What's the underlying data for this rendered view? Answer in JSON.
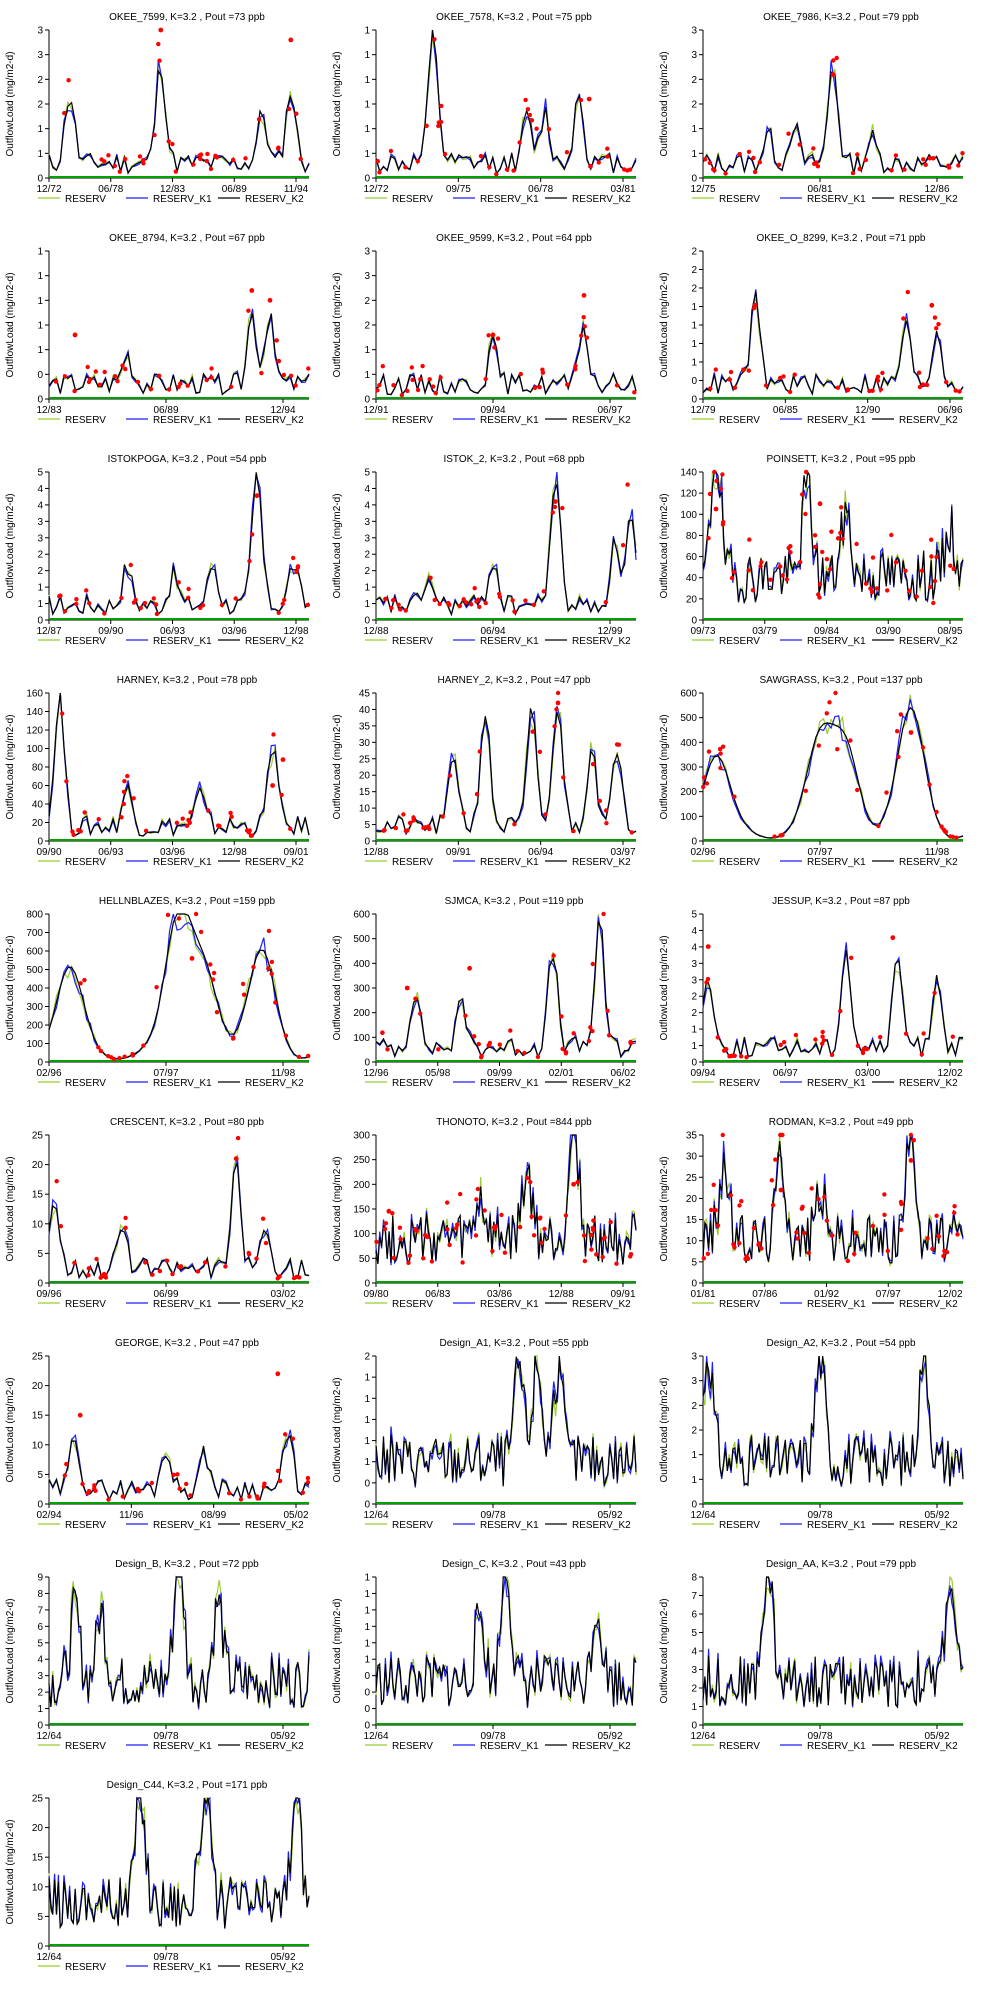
{
  "colors": {
    "RESERV": "#9acd32",
    "RESERV_K1": "#1f1fff",
    "RESERV_K2": "#000000",
    "obs": "#ff0000",
    "baseline": "#00a000"
  },
  "legend": [
    "RESERV",
    "RESERV_K1",
    "RESERV_K2"
  ],
  "ylabel": "OutflowLoad (mg/m2-d)",
  "chart_data": [
    {
      "type": "line",
      "title": "OKEE_7599, K=3.2 , Pout =73 ppb",
      "xticks": [
        "12/72",
        "06/78",
        "12/83",
        "06/89",
        "11/94"
      ],
      "yticks": [
        "0",
        "1",
        "1",
        "2",
        "2",
        "3",
        "3"
      ],
      "ylim": [
        0,
        3
      ],
      "peaks": [
        [
          0.08,
          1.4
        ],
        [
          0.43,
          2.0
        ],
        [
          0.82,
          1.0
        ],
        [
          0.93,
          1.5
        ]
      ],
      "obs_peaks": [
        [
          0.43,
          3.05
        ],
        [
          0.93,
          2.8
        ]
      ],
      "seed": 11
    },
    {
      "type": "line",
      "title": "OKEE_7578, K=3.2 , Pout =75 ppb",
      "xticks": [
        "12/72",
        "09/75",
        "06/78",
        "03/81"
      ],
      "yticks": [
        "0",
        "1",
        "1",
        "1",
        "1",
        "1",
        "1"
      ],
      "ylim": [
        0,
        3
      ],
      "peaks": [
        [
          0.22,
          2.7
        ],
        [
          0.58,
          0.9
        ],
        [
          0.65,
          1.0
        ],
        [
          0.78,
          1.4
        ]
      ],
      "obs_peaks": [
        [
          0.82,
          1.6
        ]
      ],
      "seed": 12
    },
    {
      "type": "line",
      "title": "OKEE_7986, K=3.2 , Pout =79 ppb",
      "xticks": [
        "12/75",
        "06/81",
        "12/86"
      ],
      "yticks": [
        "0",
        "1",
        "1",
        "2",
        "2",
        "3",
        "3"
      ],
      "ylim": [
        0,
        3
      ],
      "peaks": [
        [
          0.25,
          0.6
        ],
        [
          0.35,
          0.8
        ],
        [
          0.5,
          2.0
        ],
        [
          0.65,
          0.5
        ]
      ],
      "obs_peaks": [
        [
          0.5,
          2.1
        ]
      ],
      "seed": 13
    },
    {
      "type": "line",
      "title": "OKEE_8794, K=3.2 , Pout =67 ppb",
      "xticks": [
        "12/83",
        "06/89",
        "12/94"
      ],
      "yticks": [
        "0",
        "0",
        "1",
        "1",
        "1",
        "1",
        "1"
      ],
      "ylim": [
        0,
        3
      ],
      "peaks": [
        [
          0.3,
          0.6
        ],
        [
          0.78,
          1.4
        ],
        [
          0.85,
          1.5
        ]
      ],
      "obs_peaks": [
        [
          0.78,
          2.2
        ],
        [
          0.85,
          2.0
        ],
        [
          0.1,
          1.3
        ]
      ],
      "seed": 14
    },
    {
      "type": "line",
      "title": "OKEE_9599, K=3.2 , Pout =64 ppb",
      "xticks": [
        "12/91",
        "09/94",
        "06/97"
      ],
      "yticks": [
        "0",
        "1",
        "1",
        "2",
        "2",
        "3",
        "3"
      ],
      "ylim": [
        0,
        3
      ],
      "peaks": [
        [
          0.45,
          0.8
        ],
        [
          0.8,
          1.0
        ]
      ],
      "obs_peaks": [
        [
          0.8,
          2.1
        ],
        [
          0.45,
          1.3
        ]
      ],
      "seed": 15
    },
    {
      "type": "line",
      "title": "OKEE_O_8299, K=3.2 , Pout =71 ppb",
      "xticks": [
        "12/79",
        "06/85",
        "12/90",
        "06/96"
      ],
      "yticks": [
        "0",
        "0",
        "1",
        "1",
        "1",
        "1",
        "2",
        "2",
        "2"
      ],
      "ylim": [
        0,
        3
      ],
      "peaks": [
        [
          0.2,
          1.7
        ],
        [
          0.78,
          1.2
        ],
        [
          0.9,
          1.1
        ]
      ],
      "obs_peaks": [
        [
          0.2,
          1.9
        ],
        [
          0.88,
          1.9
        ]
      ],
      "seed": 16
    },
    {
      "type": "line",
      "title": "ISTOKPOGA, K=3.2 , Pout =54 ppb",
      "xticks": [
        "12/87",
        "09/90",
        "06/93",
        "03/96",
        "12/98"
      ],
      "yticks": [
        "0",
        "1",
        "1",
        "2",
        "2",
        "3",
        "3",
        "4",
        "4",
        "5"
      ],
      "ylim": [
        0,
        5
      ],
      "peaks": [
        [
          0.3,
          1.3
        ],
        [
          0.48,
          1.0
        ],
        [
          0.63,
          1.4
        ],
        [
          0.8,
          4.4
        ],
        [
          0.94,
          1.4
        ]
      ],
      "obs_peaks": [
        [
          0.8,
          4.2
        ]
      ],
      "seed": 17
    },
    {
      "type": "line",
      "title": "ISTOK_2, K=3.2 , Pout =68 ppb",
      "xticks": [
        "12/88",
        "06/94",
        "12/99"
      ],
      "yticks": [
        "0",
        "1",
        "1",
        "2",
        "2",
        "3",
        "3",
        "4",
        "4",
        "5"
      ],
      "ylim": [
        0,
        5
      ],
      "peaks": [
        [
          0.2,
          0.9
        ],
        [
          0.45,
          1.5
        ],
        [
          0.69,
          4.4
        ],
        [
          0.92,
          2.1
        ],
        [
          0.98,
          3.0
        ]
      ],
      "obs_peaks": [
        [
          0.69,
          4.0
        ]
      ],
      "seed": 18
    },
    {
      "type": "line",
      "title": "POINSETT, K=3.2 , Pout =95 ppb",
      "xticks": [
        "09/73",
        "03/79",
        "09/84",
        "03/90",
        "08/95"
      ],
      "yticks": [
        "0",
        "20",
        "40",
        "60",
        "80",
        "100",
        "120",
        "140"
      ],
      "ylim": [
        0,
        140
      ],
      "peaks": [
        [
          0.05,
          120
        ],
        [
          0.4,
          90
        ],
        [
          0.55,
          60
        ],
        [
          0.95,
          45
        ]
      ],
      "obs_peaks": [
        [
          0.05,
          105
        ],
        [
          0.45,
          110
        ]
      ],
      "seed": 19,
      "dense": true
    },
    {
      "type": "line",
      "title": "HARNEY, K=3.2 , Pout =78 ppb",
      "xticks": [
        "09/90",
        "06/93",
        "03/96",
        "12/98",
        "09/01"
      ],
      "yticks": [
        "0",
        "20",
        "40",
        "60",
        "80",
        "100",
        "120",
        "140",
        "160"
      ],
      "ylim": [
        0,
        160
      ],
      "peaks": [
        [
          0.04,
          145
        ],
        [
          0.3,
          40
        ],
        [
          0.58,
          35
        ],
        [
          0.86,
          90
        ]
      ],
      "obs_peaks": [
        [
          0.86,
          60
        ],
        [
          0.9,
          88
        ]
      ],
      "seed": 20
    },
    {
      "type": "line",
      "title": "HARNEY_2, K=3.2 , Pout =47 ppb",
      "xticks": [
        "12/88",
        "09/91",
        "06/94",
        "03/97"
      ],
      "yticks": [
        "0",
        "5",
        "10",
        "15",
        "20",
        "25",
        "30",
        "35",
        "40",
        "45"
      ],
      "ylim": [
        0,
        45
      ],
      "peaks": [
        [
          0.3,
          22
        ],
        [
          0.42,
          35
        ],
        [
          0.6,
          35
        ],
        [
          0.7,
          38
        ],
        [
          0.83,
          25
        ],
        [
          0.93,
          25
        ]
      ],
      "obs_peaks": [
        [
          0.7,
          42
        ]
      ],
      "seed": 21
    },
    {
      "type": "line",
      "title": "SAWGRASS, K=3.2 , Pout =137 ppb",
      "xticks": [
        "02/96",
        "07/97",
        "11/98"
      ],
      "yticks": [
        "0",
        "100",
        "200",
        "300",
        "400",
        "500",
        "600"
      ],
      "ylim": [
        0,
        600
      ],
      "peaks": [
        [
          0.05,
          280
        ],
        [
          0.45,
          340
        ],
        [
          0.55,
          350
        ],
        [
          0.8,
          470
        ]
      ],
      "obs_peaks": [
        [
          0.8,
          440
        ]
      ],
      "seed": 22,
      "smooth": true
    },
    {
      "type": "line",
      "title": "HELLNBLAZES, K=3.2 , Pout =159 ppb",
      "xticks": [
        "02/96",
        "07/97",
        "11/98"
      ],
      "yticks": [
        "0",
        "100",
        "200",
        "300",
        "400",
        "500",
        "600",
        "700",
        "800"
      ],
      "ylim": [
        0,
        800
      ],
      "peaks": [
        [
          0.08,
          420
        ],
        [
          0.5,
          710
        ],
        [
          0.6,
          450
        ],
        [
          0.82,
          520
        ]
      ],
      "obs_peaks": [
        [
          0.55,
          560
        ]
      ],
      "seed": 23,
      "smooth": true
    },
    {
      "type": "line",
      "title": "SJMCA, K=3.2 , Pout =119 ppb",
      "xticks": [
        "12/96",
        "05/98",
        "09/99",
        "02/01",
        "06/02"
      ],
      "yticks": [
        "0",
        "100",
        "200",
        "300",
        "400",
        "500",
        "600"
      ],
      "ylim": [
        0,
        600
      ],
      "peaks": [
        [
          0.15,
          230
        ],
        [
          0.33,
          180
        ],
        [
          0.68,
          380
        ],
        [
          0.86,
          500
        ]
      ],
      "obs_peaks": [
        [
          0.12,
          300
        ],
        [
          0.36,
          380
        ]
      ],
      "seed": 24
    },
    {
      "type": "line",
      "title": "JESSUP, K=3.2 , Pout =87 ppb",
      "xticks": [
        "09/94",
        "06/97",
        "03/00",
        "12/02"
      ],
      "yticks": [
        "0",
        "1",
        "1",
        "2",
        "2",
        "3",
        "3",
        "4",
        "4",
        "5"
      ],
      "ylim": [
        0,
        5
      ],
      "peaks": [
        [
          0.02,
          2.5
        ],
        [
          0.55,
          3.3
        ],
        [
          0.75,
          3.0
        ],
        [
          0.9,
          2.5
        ]
      ],
      "obs_peaks": [
        [
          0.73,
          4.2
        ],
        [
          0.02,
          3.9
        ]
      ],
      "seed": 25
    },
    {
      "type": "line",
      "title": "CRESCENT, K=3.2 , Pout =80 ppb",
      "xticks": [
        "09/96",
        "06/99",
        "03/02"
      ],
      "yticks": [
        "0",
        "5",
        "10",
        "15",
        "20",
        "25"
      ],
      "ylim": [
        0,
        25
      ],
      "peaks": [
        [
          0.02,
          12
        ],
        [
          0.28,
          7
        ],
        [
          0.72,
          17
        ],
        [
          0.83,
          6
        ]
      ],
      "obs_peaks": [
        [
          0.72,
          21
        ]
      ],
      "seed": 26
    },
    {
      "type": "line",
      "title": "THONOTO, K=3.2 , Pout =844 ppb",
      "xticks": [
        "09/80",
        "06/83",
        "03/86",
        "12/88",
        "09/91"
      ],
      "yticks": [
        "0",
        "50",
        "100",
        "150",
        "200",
        "250",
        "300"
      ],
      "ylim": [
        0,
        300
      ],
      "peaks": [
        [
          0.4,
          80
        ],
        [
          0.58,
          130
        ],
        [
          0.76,
          245
        ]
      ],
      "obs_peaks": [
        [
          0.76,
          200
        ]
      ],
      "seed": 27,
      "dense": true
    },
    {
      "type": "line",
      "title": "RODMAN, K=3.2 , Pout =49 ppb",
      "xticks": [
        "01/81",
        "07/86",
        "01/92",
        "07/97",
        "12/02"
      ],
      "yticks": [
        "0",
        "5",
        "10",
        "15",
        "20",
        "25",
        "30",
        "35"
      ],
      "ylim": [
        0,
        35
      ],
      "peaks": [
        [
          0.08,
          18
        ],
        [
          0.3,
          20
        ],
        [
          0.45,
          12
        ],
        [
          0.8,
          27
        ]
      ],
      "obs_peaks": [
        [
          0.8,
          29
        ],
        [
          0.3,
          22
        ]
      ],
      "seed": 28,
      "dense": true
    },
    {
      "type": "line",
      "title": "GEORGE, K=3.2 , Pout =47 ppb",
      "xticks": [
        "02/94",
        "11/96",
        "08/99",
        "05/02"
      ],
      "yticks": [
        "0",
        "5",
        "10",
        "15",
        "20",
        "25"
      ],
      "ylim": [
        0,
        25
      ],
      "peaks": [
        [
          0.1,
          9
        ],
        [
          0.45,
          7
        ],
        [
          0.6,
          6
        ],
        [
          0.92,
          9
        ]
      ],
      "obs_peaks": [
        [
          0.88,
          22
        ],
        [
          0.12,
          15
        ]
      ],
      "seed": 29
    },
    {
      "type": "line",
      "title": "Design_A1, K=3.2 , Pout =55 ppb",
      "xticks": [
        "12/64",
        "09/78",
        "05/92"
      ],
      "yticks": [
        "0",
        "0",
        "1",
        "1",
        "1",
        "1",
        "1",
        "2"
      ],
      "ylim": [
        0,
        2
      ],
      "peaks": [
        [
          0.55,
          1.3
        ],
        [
          0.62,
          1.3
        ],
        [
          0.7,
          1.2
        ]
      ],
      "obs_peaks": [],
      "seed": 30,
      "dense": true,
      "noobs": true
    },
    {
      "type": "line",
      "title": "Design_A2, K=3.2 , Pout =54 ppb",
      "xticks": [
        "12/64",
        "09/78",
        "05/92"
      ],
      "yticks": [
        "0",
        "1",
        "1",
        "2",
        "2",
        "3",
        "3"
      ],
      "ylim": [
        0,
        3
      ],
      "peaks": [
        [
          0.02,
          2.2
        ],
        [
          0.45,
          2.1
        ],
        [
          0.85,
          2.3
        ]
      ],
      "obs_peaks": [],
      "seed": 31,
      "dense": true,
      "noobs": true
    },
    {
      "type": "line",
      "title": "Design_B, K=3.2 , Pout =72 ppb",
      "xticks": [
        "12/64",
        "09/78",
        "05/92"
      ],
      "yticks": [
        "0",
        "1",
        "2",
        "3",
        "4",
        "5",
        "6",
        "7",
        "8",
        "9"
      ],
      "ylim": [
        0,
        9
      ],
      "peaks": [
        [
          0.1,
          4.4
        ],
        [
          0.2,
          4.2
        ],
        [
          0.5,
          8.0
        ],
        [
          0.65,
          4.8
        ]
      ],
      "obs_peaks": [],
      "seed": 32,
      "dense": true,
      "noobs": true
    },
    {
      "type": "line",
      "title": "Design_C, K=3.2 , Pout =43 ppb",
      "xticks": [
        "12/64",
        "09/78",
        "05/92"
      ],
      "yticks": [
        "0",
        "0",
        "0",
        "0",
        "1",
        "1",
        "1",
        "1",
        "1",
        "1"
      ],
      "ylim": [
        0,
        2
      ],
      "peaks": [
        [
          0.5,
          1.6
        ],
        [
          0.4,
          0.9
        ],
        [
          0.85,
          1.0
        ]
      ],
      "obs_peaks": [],
      "seed": 33,
      "dense": true,
      "noobs": true
    },
    {
      "type": "line",
      "title": "Design_AA, K=3.2 , Pout =79 ppb",
      "xticks": [
        "12/64",
        "09/78",
        "05/92"
      ],
      "yticks": [
        "0",
        "1",
        "2",
        "3",
        "4",
        "5",
        "6",
        "7",
        "8"
      ],
      "ylim": [
        0,
        8
      ],
      "peaks": [
        [
          0.25,
          6.5
        ],
        [
          0.95,
          5.5
        ]
      ],
      "obs_peaks": [],
      "seed": 34,
      "dense": true,
      "noobs": true
    },
    {
      "type": "line",
      "title": "Design_C44, K=3.2 , Pout =171 ppb",
      "xticks": [
        "12/64",
        "09/78",
        "05/92"
      ],
      "yticks": [
        "0",
        "5",
        "10",
        "15",
        "20",
        "25"
      ],
      "ylim": [
        0,
        25
      ],
      "peaks": [
        [
          0.35,
          20
        ],
        [
          0.6,
          19
        ],
        [
          0.95,
          18
        ]
      ],
      "obs_peaks": [],
      "seed": 35,
      "dense": true,
      "noobs": true
    }
  ]
}
